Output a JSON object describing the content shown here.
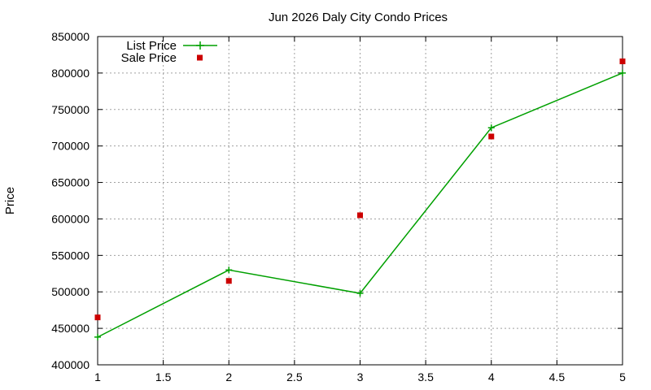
{
  "chart_data": {
    "type": "line",
    "title": "Jun 2026 Daly City Condo Prices",
    "xlabel": "",
    "ylabel": "Price",
    "xlim": [
      1,
      5
    ],
    "ylim": [
      400000,
      850000
    ],
    "x_ticks": [
      "1",
      "1.5",
      "2",
      "2.5",
      "3",
      "3.5",
      "4",
      "4.5",
      "5"
    ],
    "y_ticks": [
      "400000",
      "450000",
      "500000",
      "550000",
      "600000",
      "650000",
      "700000",
      "750000",
      "800000",
      "850000"
    ],
    "grid": true,
    "legend_position": "top-left",
    "series": [
      {
        "name": "List Price",
        "style": "line-with-plus-markers",
        "color": "#00a000",
        "x": [
          1,
          2,
          3,
          4,
          5
        ],
        "y": [
          438000,
          530000,
          498000,
          725000,
          800000
        ]
      },
      {
        "name": "Sale Price",
        "style": "square-markers",
        "color": "#cc0000",
        "x": [
          1,
          2,
          3,
          4,
          5
        ],
        "y": [
          465000,
          515000,
          605000,
          713000,
          816000
        ]
      }
    ]
  }
}
